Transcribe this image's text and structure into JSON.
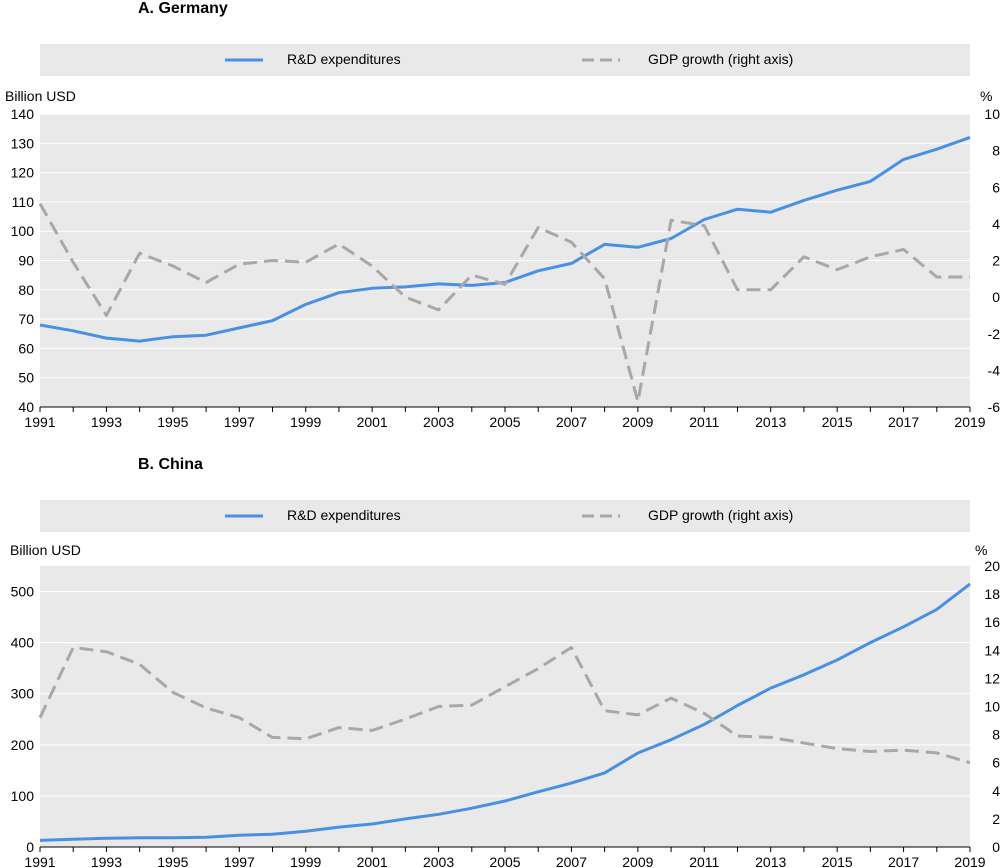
{
  "chart_data": [
    {
      "type": "line",
      "title": "A. Germany",
      "legend": [
        "R&D expenditures",
        "GDP growth (right axis)"
      ],
      "ylabel_left": "Billion USD",
      "ylabel_right": "%",
      "ylim_left": [
        40,
        140
      ],
      "ylim_right": [
        -6,
        10
      ],
      "yticks_left": [
        40,
        50,
        60,
        70,
        80,
        90,
        100,
        110,
        120,
        130,
        140
      ],
      "yticks_right": [
        -6,
        -4,
        -2,
        0,
        2,
        4,
        6,
        8,
        10
      ],
      "xlim": [
        1991,
        2019
      ],
      "xticks": [
        1991,
        1993,
        1995,
        1997,
        1999,
        2001,
        2003,
        2005,
        2007,
        2009,
        2011,
        2013,
        2015,
        2017,
        2019
      ],
      "grid": true,
      "legend_position": "top",
      "x": [
        1991,
        1992,
        1993,
        1994,
        1995,
        1996,
        1997,
        1998,
        1999,
        2000,
        2001,
        2002,
        2003,
        2004,
        2005,
        2006,
        2007,
        2008,
        2009,
        2010,
        2011,
        2012,
        2013,
        2014,
        2015,
        2016,
        2017,
        2018,
        2019
      ],
      "series": [
        {
          "name": "R&D expenditures",
          "axis": "left",
          "color": "#4a90e2",
          "style": "solid",
          "values": [
            68,
            66,
            63.5,
            62.5,
            64,
            64.5,
            67,
            69.5,
            75,
            79,
            80.5,
            81,
            82,
            81.5,
            82.5,
            86.5,
            89,
            95.5,
            94.5,
            97.5,
            104,
            107.5,
            106.5,
            110.5,
            114,
            117,
            124.5,
            128,
            132
          ]
        },
        {
          "name": "GDP growth (right axis)",
          "axis": "right",
          "color": "#a8a8a8",
          "style": "dashed",
          "values": [
            5.1,
            1.9,
            -1.0,
            2.4,
            1.7,
            0.8,
            1.8,
            2.0,
            1.9,
            2.9,
            1.7,
            0.0,
            -0.7,
            1.2,
            0.7,
            3.8,
            3.0,
            1.0,
            -5.7,
            4.2,
            3.9,
            0.4,
            0.4,
            2.2,
            1.5,
            2.2,
            2.6,
            1.1,
            1.1
          ]
        }
      ]
    },
    {
      "type": "line",
      "title": "B. China",
      "legend": [
        "R&D expenditures",
        "GDP growth (right axis)"
      ],
      "ylabel_left": "Billion USD",
      "ylabel_right": "%",
      "ylim_left": [
        0,
        550
      ],
      "ylim_right": [
        0,
        20
      ],
      "yticks_left": [
        0,
        100,
        200,
        300,
        400,
        500
      ],
      "yticks_right": [
        0,
        2,
        4,
        6,
        8,
        10,
        12,
        14,
        16,
        18,
        20
      ],
      "xlim": [
        1991,
        2019
      ],
      "xticks": [
        1991,
        1993,
        1995,
        1997,
        1999,
        2001,
        2003,
        2005,
        2007,
        2009,
        2011,
        2013,
        2015,
        2017,
        2019
      ],
      "grid": true,
      "legend_position": "top",
      "x": [
        1991,
        1992,
        1993,
        1994,
        1995,
        1996,
        1997,
        1998,
        1999,
        2000,
        2001,
        2002,
        2003,
        2004,
        2005,
        2006,
        2007,
        2008,
        2009,
        2010,
        2011,
        2012,
        2013,
        2014,
        2015,
        2016,
        2017,
        2018,
        2019
      ],
      "series": [
        {
          "name": "R&D expenditures",
          "axis": "left",
          "color": "#4a90e2",
          "style": "solid",
          "values": [
            13,
            15,
            17,
            18,
            18,
            19,
            23,
            25,
            31,
            39,
            45,
            55,
            64,
            76,
            90,
            108,
            125,
            145,
            184,
            210,
            240,
            277,
            311,
            337,
            366,
            400,
            431,
            465,
            515
          ]
        },
        {
          "name": "GDP growth (right axis)",
          "axis": "right",
          "color": "#a8a8a8",
          "style": "dashed",
          "values": [
            9.2,
            14.2,
            13.9,
            13.0,
            11.0,
            9.9,
            9.2,
            7.8,
            7.7,
            8.5,
            8.3,
            9.1,
            10.0,
            10.1,
            11.4,
            12.7,
            14.2,
            9.7,
            9.4,
            10.6,
            9.5,
            7.9,
            7.8,
            7.4,
            7.0,
            6.8,
            6.9,
            6.7,
            6.0
          ]
        }
      ]
    }
  ]
}
